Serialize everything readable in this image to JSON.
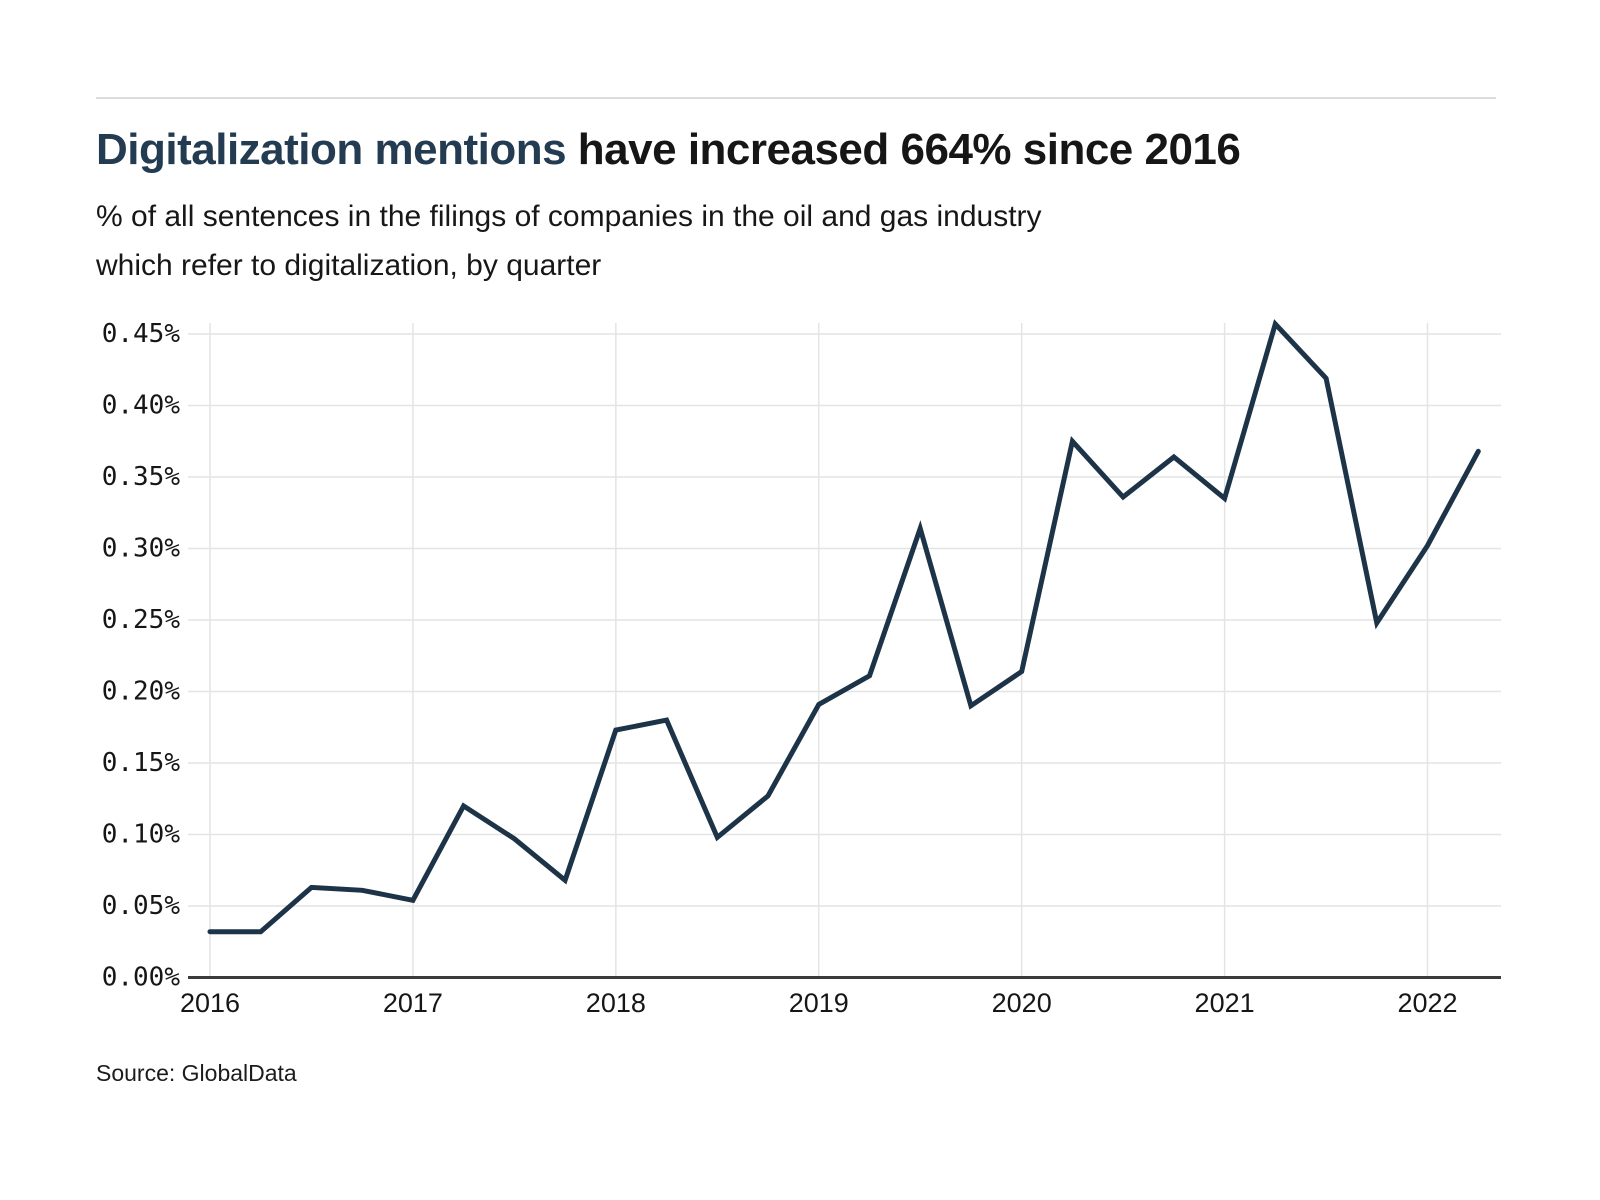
{
  "header": {
    "title_highlight": "Digitalization mentions",
    "title_rest": " have increased 664% since 2016",
    "subtitle_line1": "% of all sentences in the filings of companies in the oil and gas industry",
    "subtitle_line2": "which refer to digitalization, by quarter"
  },
  "footer": {
    "source": "Source: GlobalData"
  },
  "colors": {
    "title_accent": "#233c52",
    "line": "#1d3348",
    "grid": "#e4e4e4",
    "axis": "#3b3b3b",
    "text": "#161616"
  },
  "chart_data": {
    "type": "line",
    "title": "Digitalization mentions have increased 664% since 2016",
    "subtitle": "% of all sentences in the filings of companies in the oil and gas industry which refer to digitalization, by quarter",
    "x": [
      "Q1 2016",
      "Q2 2016",
      "Q3 2016",
      "Q4 2016",
      "Q1 2017",
      "Q2 2017",
      "Q3 2017",
      "Q4 2017",
      "Q1 2018",
      "Q2 2018",
      "Q3 2018",
      "Q4 2018",
      "Q1 2019",
      "Q2 2019",
      "Q3 2019",
      "Q4 2019",
      "Q1 2020",
      "Q2 2020",
      "Q3 2020",
      "Q4 2020",
      "Q1 2021",
      "Q2 2021",
      "Q3 2021",
      "Q4 2021",
      "Q1 2022",
      "Q2 2022"
    ],
    "values": [
      0.032,
      0.032,
      0.063,
      0.061,
      0.054,
      0.12,
      0.097,
      0.068,
      0.173,
      0.18,
      0.098,
      0.127,
      0.191,
      0.211,
      0.314,
      0.19,
      0.214,
      0.375,
      0.336,
      0.364,
      0.335,
      0.457,
      0.419,
      0.248,
      0.302,
      0.368
    ],
    "x_tick_labels": [
      "2016",
      "2017",
      "2018",
      "2019",
      "2020",
      "2021",
      "2022"
    ],
    "y_tick_labels": [
      "0.00%",
      "0.05%",
      "0.10%",
      "0.15%",
      "0.20%",
      "0.25%",
      "0.30%",
      "0.35%",
      "0.40%",
      "0.45%"
    ],
    "ylim": [
      0,
      0.45
    ],
    "y_tick_step": 0.05,
    "y_unit": "%",
    "xlabel": "",
    "ylabel": "",
    "grid": true,
    "legend": "none"
  }
}
